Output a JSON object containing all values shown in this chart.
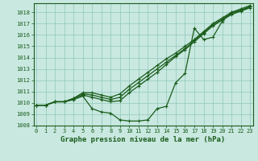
{
  "x": [
    0,
    1,
    2,
    3,
    4,
    5,
    6,
    7,
    8,
    9,
    10,
    11,
    12,
    13,
    14,
    15,
    16,
    17,
    18,
    19,
    20,
    21,
    22,
    23
  ],
  "line1": [
    1009.8,
    1009.8,
    1010.1,
    1010.1,
    1010.3,
    1010.6,
    1009.5,
    1009.2,
    1009.1,
    1008.5,
    1008.4,
    1008.4,
    1008.5,
    1009.5,
    1009.7,
    1011.8,
    1012.6,
    1016.6,
    1015.6,
    1015.8,
    1017.2,
    1018.0,
    1018.1,
    1018.5
  ],
  "line2": [
    1009.8,
    1009.8,
    1010.1,
    1010.1,
    1010.3,
    1010.7,
    1010.5,
    1010.3,
    1010.1,
    1010.2,
    1010.9,
    1011.5,
    1012.1,
    1012.7,
    1013.4,
    1014.1,
    1014.7,
    1015.4,
    1016.1,
    1016.8,
    1017.3,
    1017.8,
    1018.1,
    1018.4
  ],
  "line3": [
    1009.8,
    1009.8,
    1010.1,
    1010.1,
    1010.4,
    1010.8,
    1010.7,
    1010.5,
    1010.3,
    1010.5,
    1011.2,
    1011.8,
    1012.4,
    1013.0,
    1013.6,
    1014.2,
    1014.8,
    1015.5,
    1016.2,
    1016.9,
    1017.4,
    1017.9,
    1018.2,
    1018.5
  ],
  "line4": [
    1009.8,
    1009.8,
    1010.1,
    1010.1,
    1010.4,
    1010.9,
    1010.9,
    1010.7,
    1010.5,
    1010.8,
    1011.5,
    1012.1,
    1012.7,
    1013.3,
    1013.9,
    1014.4,
    1015.0,
    1015.6,
    1016.3,
    1017.0,
    1017.5,
    1018.0,
    1018.3,
    1018.6
  ],
  "bg_color": "#c8e8e0",
  "line_color": "#1a5c1a",
  "grid_color": "#90c8b8",
  "xlabel": "Graphe pression niveau de la mer (hPa)",
  "ylim": [
    1008,
    1018.8
  ],
  "yticks": [
    1008,
    1009,
    1010,
    1011,
    1012,
    1013,
    1014,
    1015,
    1016,
    1017,
    1018
  ],
  "xticks": [
    0,
    1,
    2,
    3,
    4,
    5,
    6,
    7,
    8,
    9,
    10,
    11,
    12,
    13,
    14,
    15,
    16,
    17,
    18,
    19,
    20,
    21,
    22,
    23
  ],
  "tick_fontsize": 5.0,
  "label_fontsize": 6.5
}
